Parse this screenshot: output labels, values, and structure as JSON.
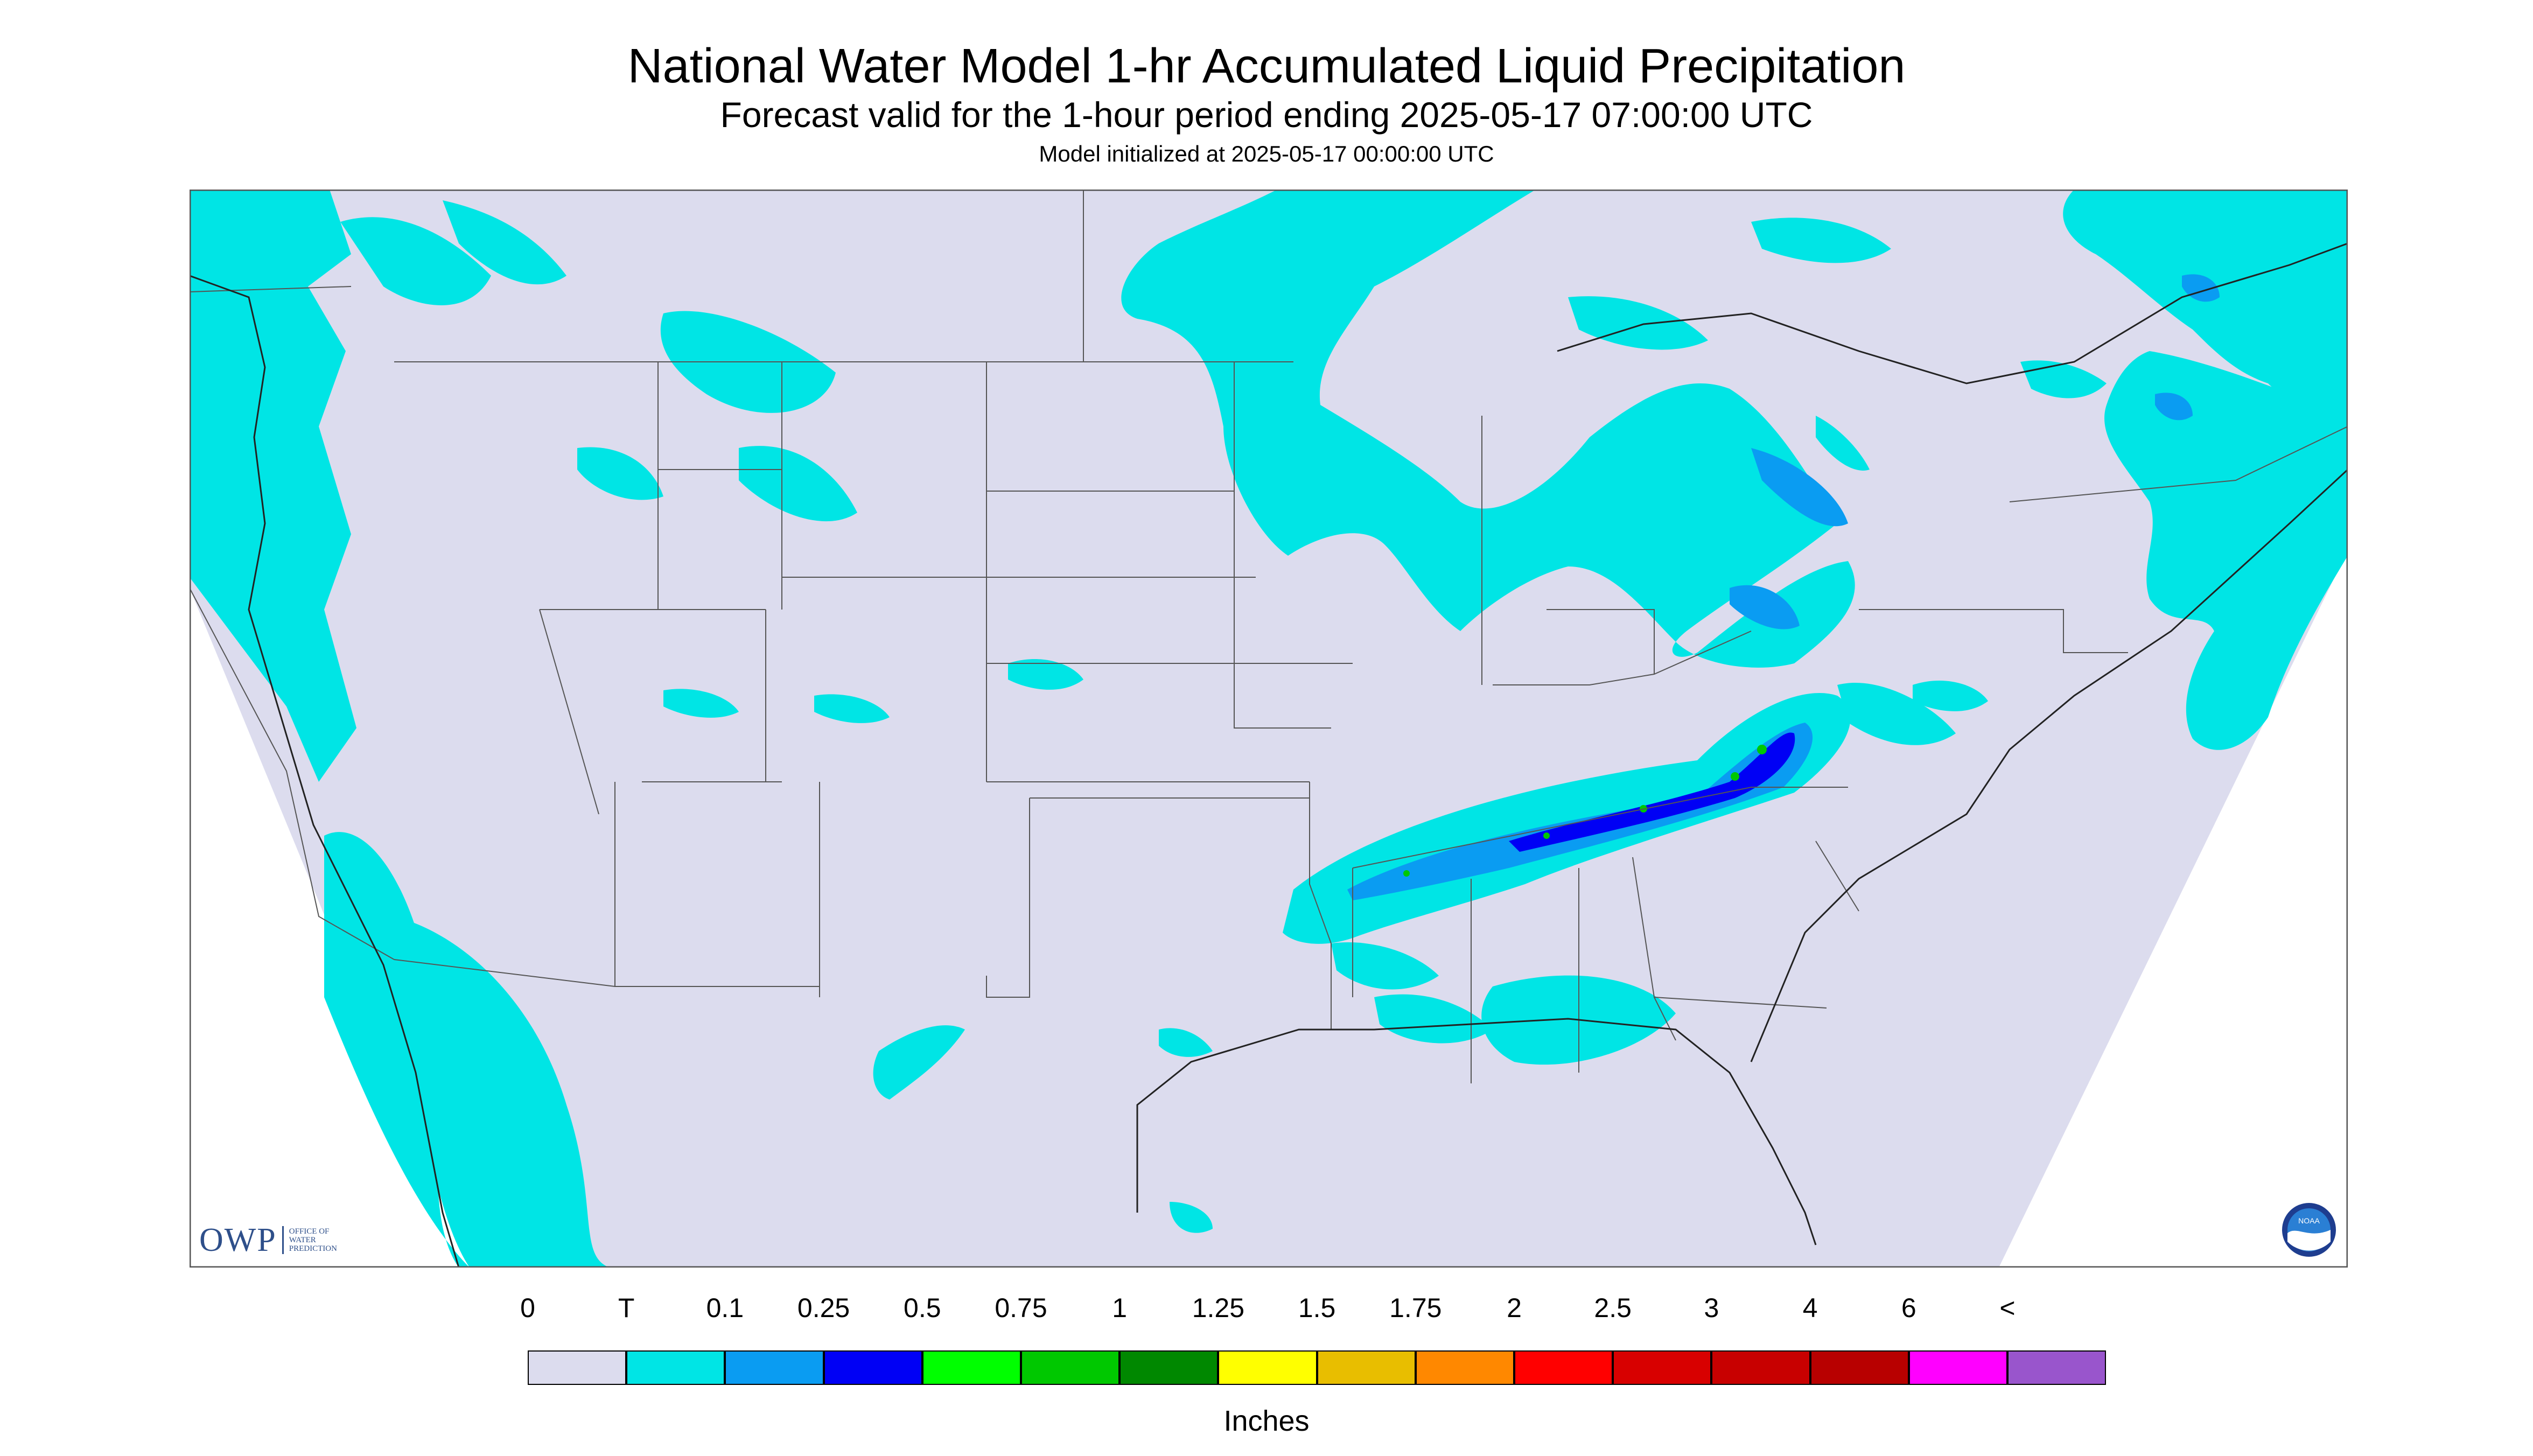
{
  "header": {
    "title": "National Water Model 1-hr Accumulated Liquid Precipitation",
    "subtitle": "Forecast valid for the 1-hour period ending 2025-05-17 07:00:00 UTC",
    "init": "Model initialized at 2025-05-17 00:00:00 UTC"
  },
  "colors": {
    "no_data_bg": "#dcdcee",
    "outside": "#ffffff",
    "border": "#555555",
    "trace": "#00e5e5"
  },
  "legend": {
    "ticks": [
      "0",
      "T",
      "0.1",
      "0.25",
      "0.5",
      "0.75",
      "1",
      "1.25",
      "1.5",
      "1.75",
      "2",
      "2.5",
      "3",
      "4",
      "6",
      "<"
    ],
    "colors": [
      "#dcdcee",
      "#00e5e5",
      "#0a9cf2",
      "#0000f5",
      "#00ff00",
      "#00c800",
      "#008800",
      "#ffff00",
      "#e8be00",
      "#ff8800",
      "#ff0000",
      "#d80000",
      "#c80000",
      "#b80000",
      "#ff00ff",
      "#9955cc"
    ],
    "units": "Inches"
  },
  "logos": {
    "owp_letters": "OWP",
    "owp_text": "OFFICE OF WATER PREDICTION",
    "noaa_text": "NOAA"
  }
}
